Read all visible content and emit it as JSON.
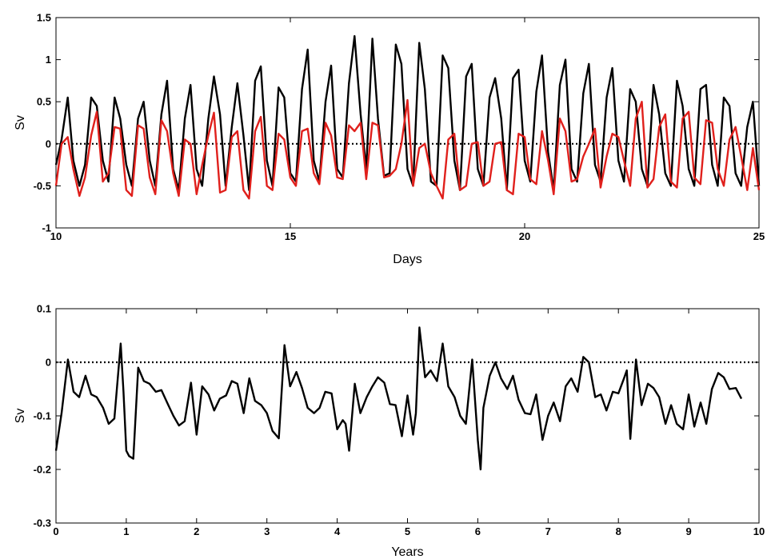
{
  "chart_data": [
    {
      "type": "line",
      "xlabel": "Days",
      "ylabel": "Sv",
      "xlim": [
        10,
        25
      ],
      "ylim": [
        -1,
        1.5
      ],
      "xticks": [
        10,
        15,
        20,
        25
      ],
      "yticks": [
        -1,
        -0.5,
        0,
        0.5,
        1,
        1.5
      ],
      "xtick_labels": [
        "10",
        "15",
        "20",
        "25"
      ],
      "ytick_labels": [
        "-1",
        "-0.5",
        "0",
        "0.5",
        "1",
        "1.5"
      ],
      "grid": false,
      "reference_line": {
        "y": 0,
        "style": "dotted",
        "color": "#000000"
      },
      "series": [
        {
          "color": "#000000",
          "x": [
            10.0,
            10.12,
            10.25,
            10.37,
            10.5,
            10.62,
            10.75,
            10.87,
            11.0,
            11.12,
            11.25,
            11.37,
            11.5,
            11.62,
            11.75,
            11.87,
            12.0,
            12.12,
            12.25,
            12.37,
            12.5,
            12.62,
            12.75,
            12.87,
            13.0,
            13.12,
            13.25,
            13.37,
            13.5,
            13.62,
            13.75,
            13.87,
            14.0,
            14.12,
            14.25,
            14.37,
            14.5,
            14.62,
            14.75,
            14.87,
            15.0,
            15.12,
            15.25,
            15.37,
            15.5,
            15.62,
            15.75,
            15.87,
            16.0,
            16.12,
            16.25,
            16.37,
            16.5,
            16.62,
            16.75,
            16.87,
            17.0,
            17.12,
            17.25,
            17.37,
            17.5,
            17.62,
            17.75,
            17.87,
            18.0,
            18.12,
            18.25,
            18.37,
            18.5,
            18.62,
            18.75,
            18.87,
            19.0,
            19.12,
            19.25,
            19.37,
            19.5,
            19.62,
            19.75,
            19.87,
            20.0,
            20.12,
            20.25,
            20.37,
            20.5,
            20.62,
            20.75,
            20.87,
            21.0,
            21.12,
            21.25,
            21.37,
            21.5,
            21.62,
            21.75,
            21.87,
            22.0,
            22.12,
            22.25,
            22.37,
            22.5,
            22.62,
            22.75,
            22.87,
            23.0,
            23.12,
            23.25,
            23.37,
            23.5,
            23.62,
            23.75,
            23.87,
            24.0,
            24.12,
            24.25,
            24.37,
            24.5,
            24.62,
            24.75,
            24.87,
            25.0
          ],
          "y": [
            -0.25,
            0.05,
            0.55,
            -0.2,
            -0.5,
            -0.25,
            0.55,
            0.45,
            -0.2,
            -0.45,
            0.55,
            0.3,
            -0.25,
            -0.5,
            0.3,
            0.5,
            -0.2,
            -0.5,
            0.35,
            0.75,
            -0.3,
            -0.55,
            0.3,
            0.7,
            -0.3,
            -0.5,
            0.3,
            0.8,
            0.35,
            -0.5,
            0.2,
            0.72,
            0.1,
            -0.55,
            0.75,
            0.92,
            -0.2,
            -0.5,
            0.67,
            0.55,
            -0.35,
            -0.45,
            0.65,
            1.12,
            -0.2,
            -0.45,
            0.5,
            0.93,
            -0.3,
            -0.4,
            0.72,
            1.28,
            0.35,
            -0.3,
            1.25,
            0.3,
            -0.38,
            -0.35,
            1.18,
            0.95,
            -0.3,
            -0.5,
            1.2,
            0.65,
            -0.45,
            -0.5,
            1.05,
            0.9,
            -0.2,
            -0.55,
            0.8,
            0.95,
            -0.3,
            -0.5,
            0.55,
            0.78,
            0.3,
            -0.55,
            0.78,
            0.88,
            -0.2,
            -0.45,
            0.62,
            1.05,
            -0.1,
            -0.55,
            0.7,
            1.0,
            -0.3,
            -0.45,
            0.6,
            0.95,
            -0.25,
            -0.45,
            0.55,
            0.9,
            -0.2,
            -0.45,
            0.65,
            0.5,
            -0.3,
            -0.5,
            0.7,
            0.35,
            -0.35,
            -0.5,
            0.75,
            0.45,
            -0.3,
            -0.5,
            0.65,
            0.7,
            -0.25,
            -0.5,
            0.55,
            0.45,
            -0.35,
            -0.5,
            0.2,
            0.5,
            -0.5
          ]
        },
        {
          "color": "#e0201c",
          "x": [
            10.0,
            10.12,
            10.25,
            10.37,
            10.5,
            10.62,
            10.75,
            10.87,
            11.0,
            11.12,
            11.25,
            11.37,
            11.5,
            11.62,
            11.75,
            11.87,
            12.0,
            12.12,
            12.25,
            12.37,
            12.5,
            12.62,
            12.75,
            12.87,
            13.0,
            13.12,
            13.25,
            13.37,
            13.5,
            13.62,
            13.75,
            13.87,
            14.0,
            14.12,
            14.25,
            14.37,
            14.5,
            14.62,
            14.75,
            14.87,
            15.0,
            15.12,
            15.25,
            15.37,
            15.5,
            15.62,
            15.75,
            15.87,
            16.0,
            16.12,
            16.25,
            16.37,
            16.5,
            16.62,
            16.75,
            16.87,
            17.0,
            17.12,
            17.25,
            17.37,
            17.5,
            17.62,
            17.75,
            17.87,
            18.0,
            18.12,
            18.25,
            18.37,
            18.5,
            18.62,
            18.75,
            18.87,
            19.0,
            19.12,
            19.25,
            19.37,
            19.5,
            19.62,
            19.75,
            19.87,
            20.0,
            20.12,
            20.25,
            20.37,
            20.5,
            20.62,
            20.75,
            20.87,
            21.0,
            21.12,
            21.25,
            21.37,
            21.5,
            21.62,
            21.75,
            21.87,
            22.0,
            22.12,
            22.25,
            22.37,
            22.5,
            22.62,
            22.75,
            22.87,
            23.0,
            23.12,
            23.25,
            23.37,
            23.5,
            23.62,
            23.75,
            23.87,
            24.0,
            24.12,
            24.25,
            24.37,
            24.5,
            24.62,
            24.75,
            24.87,
            25.0
          ],
          "y": [
            -0.5,
            0.0,
            0.08,
            -0.3,
            -0.62,
            -0.4,
            0.1,
            0.38,
            -0.45,
            -0.35,
            0.2,
            0.18,
            -0.55,
            -0.62,
            0.22,
            0.18,
            -0.4,
            -0.6,
            0.28,
            0.15,
            -0.35,
            -0.62,
            0.05,
            0.0,
            -0.6,
            -0.25,
            0.1,
            0.37,
            -0.58,
            -0.55,
            0.08,
            0.15,
            -0.55,
            -0.65,
            0.15,
            0.32,
            -0.5,
            -0.55,
            0.12,
            0.05,
            -0.4,
            -0.5,
            0.15,
            0.18,
            -0.35,
            -0.48,
            0.25,
            0.1,
            -0.4,
            -0.42,
            0.22,
            0.15,
            0.25,
            -0.42,
            0.25,
            0.22,
            -0.4,
            -0.38,
            -0.3,
            0.0,
            0.52,
            -0.5,
            -0.05,
            0.0,
            -0.35,
            -0.5,
            -0.65,
            0.05,
            0.12,
            -0.55,
            -0.5,
            0.0,
            0.02,
            -0.5,
            -0.45,
            0.0,
            0.02,
            -0.55,
            -0.6,
            0.12,
            0.08,
            -0.42,
            -0.48,
            0.15,
            -0.2,
            -0.6,
            0.3,
            0.15,
            -0.45,
            -0.42,
            -0.15,
            0.0,
            0.18,
            -0.52,
            -0.15,
            0.12,
            0.08,
            -0.2,
            -0.5,
            0.3,
            0.5,
            -0.52,
            -0.42,
            0.2,
            0.35,
            -0.45,
            -0.52,
            0.3,
            0.38,
            -0.4,
            -0.48,
            0.28,
            0.25,
            -0.3,
            -0.5,
            0.05,
            0.2,
            -0.15,
            -0.55,
            -0.05,
            -0.55
          ]
        }
      ]
    },
    {
      "type": "line",
      "xlabel": "Years",
      "ylabel": "Sv",
      "xlim": [
        0,
        10
      ],
      "ylim": [
        -0.3,
        0.1
      ],
      "xticks": [
        0,
        1,
        2,
        3,
        4,
        5,
        6,
        7,
        8,
        9,
        10
      ],
      "yticks": [
        -0.3,
        -0.2,
        -0.1,
        0,
        0.1
      ],
      "xtick_labels": [
        "0",
        "1",
        "2",
        "3",
        "4",
        "5",
        "6",
        "7",
        "8",
        "9",
        "10"
      ],
      "ytick_labels": [
        "-0.3",
        "-0.2",
        "-0.1",
        "0",
        "0.1"
      ],
      "grid": false,
      "reference_line": {
        "y": 0,
        "style": "dotted",
        "color": "#000000"
      },
      "series": [
        {
          "color": "#000000",
          "x": [
            0.0,
            0.08,
            0.17,
            0.25,
            0.33,
            0.42,
            0.5,
            0.58,
            0.67,
            0.75,
            0.83,
            0.92,
            0.96,
            1.0,
            1.04,
            1.1,
            1.17,
            1.25,
            1.33,
            1.42,
            1.5,
            1.58,
            1.67,
            1.75,
            1.83,
            1.92,
            2.0,
            2.04,
            2.08,
            2.17,
            2.25,
            2.33,
            2.42,
            2.5,
            2.58,
            2.67,
            2.75,
            2.83,
            2.92,
            3.0,
            3.08,
            3.17,
            3.25,
            3.33,
            3.42,
            3.5,
            3.58,
            3.67,
            3.75,
            3.83,
            3.92,
            4.0,
            4.08,
            4.12,
            4.17,
            4.25,
            4.33,
            4.42,
            4.5,
            4.58,
            4.67,
            4.75,
            4.83,
            4.92,
            5.0,
            5.08,
            5.12,
            5.17,
            5.25,
            5.33,
            5.42,
            5.5,
            5.58,
            5.67,
            5.75,
            5.83,
            5.92,
            6.0,
            6.04,
            6.08,
            6.17,
            6.25,
            6.33,
            6.42,
            6.5,
            6.58,
            6.67,
            6.75,
            6.83,
            6.92,
            7.0,
            7.08,
            7.17,
            7.25,
            7.33,
            7.42,
            7.5,
            7.58,
            7.67,
            7.75,
            7.83,
            7.92,
            8.0,
            8.08,
            8.12,
            8.17,
            8.25,
            8.33,
            8.42,
            8.5,
            8.58,
            8.67,
            8.75,
            8.83,
            8.92,
            9.0,
            9.08,
            9.17,
            9.25,
            9.33,
            9.42,
            9.5,
            9.58,
            9.67,
            9.75
          ],
          "y": [
            -0.165,
            -0.095,
            0.005,
            -0.055,
            -0.065,
            -0.025,
            -0.06,
            -0.065,
            -0.085,
            -0.115,
            -0.105,
            0.035,
            -0.055,
            -0.165,
            -0.175,
            -0.18,
            -0.01,
            -0.035,
            -0.04,
            -0.055,
            -0.052,
            -0.075,
            -0.1,
            -0.118,
            -0.11,
            -0.038,
            -0.135,
            -0.09,
            -0.045,
            -0.06,
            -0.09,
            -0.068,
            -0.062,
            -0.035,
            -0.04,
            -0.095,
            -0.03,
            -0.072,
            -0.08,
            -0.095,
            -0.128,
            -0.142,
            0.032,
            -0.045,
            -0.018,
            -0.048,
            -0.085,
            -0.095,
            -0.085,
            -0.055,
            -0.058,
            -0.125,
            -0.108,
            -0.115,
            -0.165,
            -0.04,
            -0.095,
            -0.065,
            -0.045,
            -0.028,
            -0.038,
            -0.078,
            -0.08,
            -0.138,
            -0.062,
            -0.135,
            -0.095,
            0.065,
            -0.028,
            -0.015,
            -0.035,
            0.035,
            -0.045,
            -0.065,
            -0.1,
            -0.115,
            0.005,
            -0.145,
            -0.2,
            -0.085,
            -0.025,
            0.0,
            -0.03,
            -0.05,
            -0.025,
            -0.07,
            -0.095,
            -0.097,
            -0.06,
            -0.145,
            -0.1,
            -0.075,
            -0.11,
            -0.045,
            -0.03,
            -0.055,
            0.01,
            0.0,
            -0.065,
            -0.06,
            -0.09,
            -0.055,
            -0.058,
            -0.03,
            -0.015,
            -0.143,
            0.005,
            -0.08,
            -0.04,
            -0.048,
            -0.065,
            -0.115,
            -0.08,
            -0.115,
            -0.125,
            -0.06,
            -0.12,
            -0.075,
            -0.115,
            -0.05,
            -0.02,
            -0.028,
            -0.05,
            -0.048,
            -0.068
          ]
        }
      ]
    }
  ]
}
